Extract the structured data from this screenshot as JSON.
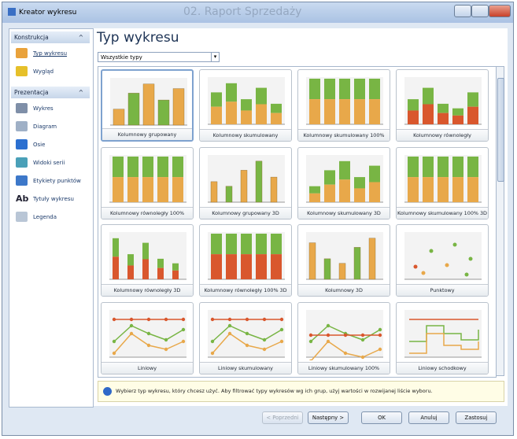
{
  "window": {
    "title": "Kreator wykresu",
    "caption": "02. Raport Sprzedaży"
  },
  "sidebar": {
    "sections": [
      {
        "title": "Konstrukcja",
        "items": [
          {
            "label": "Typ wykresu"
          },
          {
            "label": "Wygląd"
          }
        ]
      },
      {
        "title": "Prezentacja",
        "items": [
          {
            "label": "Wykres"
          },
          {
            "label": "Diagram"
          },
          {
            "label": "Osie"
          },
          {
            "label": "Widoki serii"
          },
          {
            "label": "Etykiety punktów"
          },
          {
            "label": "Tytuły wykresu",
            "icon_text": "Ab"
          },
          {
            "label": "Legenda"
          }
        ]
      }
    ]
  },
  "content": {
    "title": "Typ wykresu",
    "filter": "Wszystkie typy",
    "tiles": [
      "Kolumnowy grupowany",
      "Kolumnowy skumulowany",
      "Kolumnowy skumulowany 100%",
      "Kolumnowy równoległy",
      "Kolumnowy równoległy 100%",
      "Kolumnowy grupowany 3D",
      "Kolumnowy skumulowany 3D",
      "Kolumnowy skumulowany 100% 3D",
      "Kolumnowy równoległy 3D",
      "Kolumnowy równoległy 100% 3D",
      "Kolumnowy 3D",
      "Punktowy",
      "Liniowy",
      "Liniowy skumulowany",
      "Liniowy skumulowany 100%",
      "Liniowy schodkowy"
    ],
    "info": "Wybierz typ wykresu, który chcesz użyć. Aby filtrować typy wykresów wg ich grup, użyj wartości w rozwijanej liście wyboru."
  },
  "buttons": [
    "< Poprzedni",
    "Następny >",
    "OK",
    "Anuluj",
    "Zastosuj"
  ]
}
